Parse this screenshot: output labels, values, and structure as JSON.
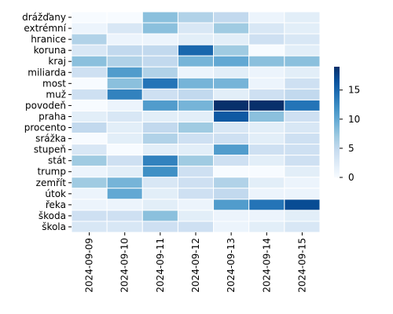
{
  "chart_data": {
    "type": "heatmap",
    "title": "",
    "xlabel": "",
    "ylabel": "",
    "x": [
      "2024-09-09",
      "2024-09-10",
      "2024-09-11",
      "2024-09-12",
      "2024-09-13",
      "2024-09-14",
      "2024-09-15"
    ],
    "y": [
      "drážďany",
      "extrémní",
      "hranice",
      "koruna",
      "kraj",
      "miliarda",
      "most",
      "muž",
      "povodeň",
      "praha",
      "procento",
      "srážka",
      "stupeň",
      "stát",
      "trump",
      "zemřít",
      "útok",
      "řeka",
      "škoda",
      "škola"
    ],
    "values": [
      [
        0,
        0,
        8,
        6,
        5,
        1,
        2
      ],
      [
        1,
        3,
        8,
        3,
        7,
        3,
        2
      ],
      [
        6,
        1,
        1,
        2,
        2,
        4,
        3
      ],
      [
        3,
        5,
        5,
        15,
        7,
        0,
        2
      ],
      [
        8,
        6,
        5,
        9,
        10,
        8,
        8
      ],
      [
        4,
        11,
        6,
        1,
        2,
        1,
        2
      ],
      [
        0,
        8,
        14,
        9,
        9,
        1,
        4
      ],
      [
        4,
        13,
        4,
        5,
        2,
        4,
        5
      ],
      [
        0,
        1,
        11,
        9,
        19,
        19,
        14
      ],
      [
        2,
        3,
        2,
        2,
        16,
        8,
        4
      ],
      [
        5,
        2,
        5,
        7,
        3,
        2,
        3
      ],
      [
        0,
        2,
        6,
        4,
        4,
        2,
        4
      ],
      [
        3,
        0,
        2,
        2,
        11,
        4,
        4
      ],
      [
        7,
        4,
        13,
        7,
        4,
        2,
        4
      ],
      [
        1,
        2,
        12,
        4,
        0,
        0,
        2
      ],
      [
        7,
        9,
        3,
        4,
        6,
        2,
        1
      ],
      [
        1,
        10,
        2,
        4,
        5,
        1,
        1
      ],
      [
        1,
        1,
        2,
        1,
        11,
        14,
        17
      ],
      [
        4,
        4,
        8,
        2,
        1,
        1,
        2
      ],
      [
        3,
        3,
        4,
        4,
        1,
        2,
        3
      ]
    ],
    "colorbar": {
      "min": 0,
      "max": 19,
      "ticks": [
        0,
        5,
        10,
        15
      ]
    },
    "colormap": [
      "#f7fbff",
      "#deebf7",
      "#c6dbef",
      "#9ecae1",
      "#6baed6",
      "#4292c6",
      "#2171b5",
      "#08519c",
      "#08306b"
    ],
    "grid_line_color": "#ffffff"
  }
}
